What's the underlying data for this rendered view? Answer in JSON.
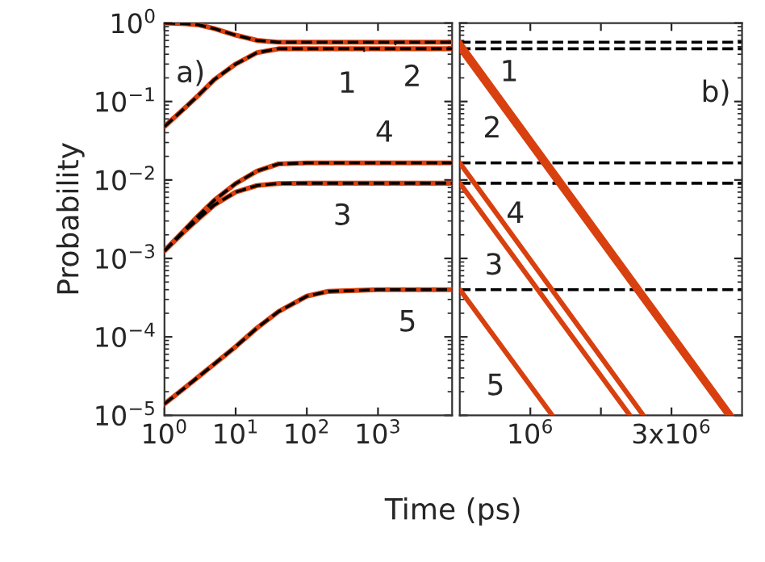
{
  "chart_data": [
    {
      "type": "line",
      "xlabel": "Time (ps)",
      "ylabel": "Probability",
      "log": "xy",
      "grid": false,
      "legend": false,
      "xlim": [
        1,
        11000
      ],
      "xticks": [
        {
          "value": 1,
          "label": "10$^{0}$"
        },
        {
          "value": 10,
          "label": "10$^{1}$"
        },
        {
          "value": 100,
          "label": "10$^{2}$"
        },
        {
          "value": 1000,
          "label": "10$^{3}$"
        }
      ],
      "ylim": [
        1e-05,
        1
      ],
      "yticks": [
        {
          "value": 1e-05,
          "label": "10$^{−5}$"
        },
        {
          "value": 0.0001,
          "label": "10$^{−4}$"
        },
        {
          "value": 0.001,
          "label": "10$^{−3}$"
        },
        {
          "value": 0.01,
          "label": "10$^{−2}$"
        },
        {
          "value": 0.1,
          "label": "10$^{−1}$"
        },
        {
          "value": 1,
          "label": "10$^{0}$"
        }
      ],
      "x": [
        1,
        2,
        3,
        5,
        10,
        20,
        40,
        100,
        200,
        1000,
        11000
      ],
      "series": [
        {
          "color": "#d9400f",
          "line_style": "solid",
          "values": [
            1.0,
            0.98,
            0.95,
            0.85,
            0.7,
            0.6,
            0.57,
            0.57,
            0.57,
            0.57,
            0.57
          ]
        },
        {
          "color": "#d9400f",
          "line_style": "solid",
          "values": [
            0.048,
            0.085,
            0.12,
            0.19,
            0.3,
            0.42,
            0.47,
            0.47,
            0.47,
            0.47,
            0.47
          ]
        },
        {
          "color": "#d9400f",
          "line_style": "solid",
          "values": [
            0.00125,
            0.0023,
            0.0032,
            0.0048,
            0.007,
            0.0085,
            0.009,
            0.0091,
            0.0091,
            0.0091,
            0.0091
          ]
        },
        {
          "color": "#d9400f",
          "line_style": "solid",
          "values": [
            0.00125,
            0.0024,
            0.0035,
            0.0055,
            0.009,
            0.013,
            0.016,
            0.0165,
            0.0165,
            0.0165,
            0.0165
          ]
        },
        {
          "color": "#d9400f",
          "line_style": "solid",
          "values": [
            1.4e-05,
            2.3e-05,
            3.1e-05,
            4.5e-05,
            7.5e-05,
            0.00013,
            0.00021,
            0.00033,
            0.00038,
            0.0004,
            0.0004
          ]
        },
        {
          "color": "#000000",
          "line_style": "dashed",
          "values": [
            1.0,
            0.98,
            0.95,
            0.85,
            0.7,
            0.6,
            0.57,
            0.57,
            0.57,
            0.57,
            0.57
          ]
        },
        {
          "color": "#000000",
          "line_style": "dashed",
          "values": [
            0.048,
            0.085,
            0.12,
            0.19,
            0.3,
            0.42,
            0.47,
            0.47,
            0.47,
            0.47,
            0.47
          ]
        },
        {
          "color": "#000000",
          "line_style": "dashed",
          "values": [
            0.00125,
            0.0023,
            0.0032,
            0.0048,
            0.007,
            0.0085,
            0.009,
            0.0091,
            0.0091,
            0.0091,
            0.0091
          ]
        },
        {
          "color": "#000000",
          "line_style": "dashed",
          "values": [
            0.00125,
            0.0024,
            0.0035,
            0.0055,
            0.009,
            0.013,
            0.016,
            0.0165,
            0.0165,
            0.0165,
            0.0165
          ]
        },
        {
          "color": "#000000",
          "line_style": "dashed",
          "values": [
            1.4e-05,
            2.3e-05,
            3.1e-05,
            4.5e-05,
            7.5e-05,
            0.00013,
            0.00021,
            0.00033,
            0.00038,
            0.0004,
            0.0004
          ]
        }
      ],
      "annotations": [
        "a)",
        {
          "text": "1",
          "x": 660,
          "y": 0.47
        },
        {
          "text": "2",
          "x": 1700,
          "y": 0.57
        },
        {
          "text": "4",
          "x": 1230,
          "y": 0.0165
        },
        {
          "text": "3",
          "x": 316,
          "y": 0.0091
        },
        {
          "text": "5",
          "x": 2600,
          "y": 0.0004
        }
      ]
    },
    {
      "type": "line",
      "log": "y",
      "grid": false,
      "legend": false,
      "tick_labels": "x",
      "xlim": [
        0,
        4000000
      ],
      "xticks": [
        {
          "value": 1000000,
          "label": "10$^{6}$"
        },
        {
          "value": 2000000,
          "label": null
        },
        {
          "value": 3000000,
          "label": "3x10$^{6}$"
        }
      ],
      "ylim": [
        1e-05,
        1
      ],
      "yticks": [
        {
          "value": 1e-05,
          "label": null
        },
        {
          "value": 0.0001,
          "label": null
        },
        {
          "value": 0.001,
          "label": null
        },
        {
          "value": 0.01,
          "label": null
        },
        {
          "value": 0.1,
          "label": null
        },
        {
          "value": 1,
          "label": null
        }
      ],
      "series": [
        {
          "color": "#d9400f",
          "line_style": "solid",
          "x": [
            0,
            3850000
          ],
          "values": [
            0.57,
            1e-05
          ]
        },
        {
          "color": "#d9400f",
          "line_style": "solid",
          "x": [
            0,
            3800000
          ],
          "values": [
            0.47,
            1e-05
          ]
        },
        {
          "color": "#d9400f",
          "line_style": "solid",
          "x": [
            0,
            2410000
          ],
          "values": [
            0.0091,
            1e-05
          ]
        },
        {
          "color": "#d9400f",
          "line_style": "solid",
          "x": [
            0,
            2600000
          ],
          "values": [
            0.0165,
            1e-05
          ]
        },
        {
          "color": "#d9400f",
          "line_style": "solid",
          "x": [
            0,
            1310000
          ],
          "values": [
            0.0004,
            1e-05
          ]
        }
      ],
      "ref_lines": [
        {
          "axis": "y",
          "value": 0.57,
          "color": "#000000",
          "line_style": "dashed"
        },
        {
          "axis": "y",
          "value": 0.47,
          "color": "#000000",
          "line_style": "dashed"
        },
        {
          "axis": "y",
          "value": 0.0165,
          "color": "#000000",
          "line_style": "dashed"
        },
        {
          "axis": "y",
          "value": 0.0091,
          "color": "#000000",
          "line_style": "dashed"
        },
        {
          "axis": "y",
          "value": 0.0004,
          "color": "#000000",
          "line_style": "dashed"
        }
      ],
      "annotations": [
        "b)",
        {
          "text": "1",
          "x": 320000,
          "y": 0.23
        },
        {
          "text": "2",
          "x": 840000,
          "y": 0.044
        },
        {
          "text": "4",
          "x": 535000,
          "y": 0.0036
        },
        {
          "text": "3",
          "x": 864000,
          "y": 0.00079
        },
        {
          "text": "5",
          "x": 1014000,
          "y": 2.3e-05
        }
      ]
    }
  ]
}
